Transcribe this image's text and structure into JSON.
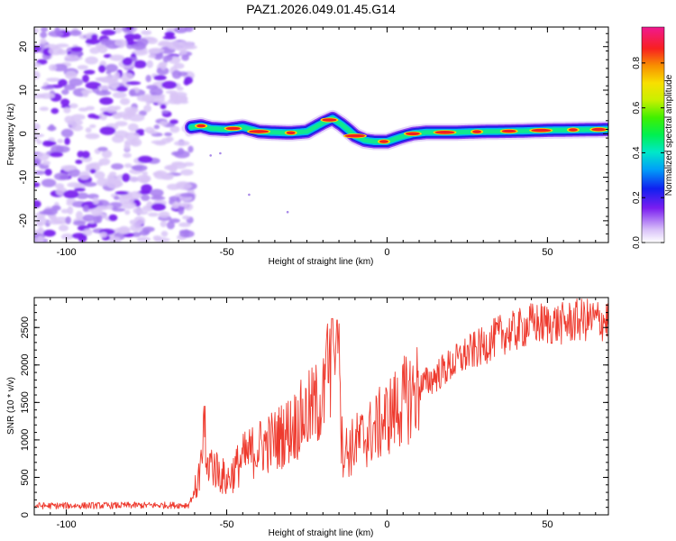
{
  "title": "PAZ1.2026.049.01.45.G14",
  "chart_data": [
    {
      "type": "heatmap",
      "xlabel": "Height of straight line (km)",
      "ylabel": "Frequency (Hz)",
      "xlim": [
        -110,
        69
      ],
      "ylim": [
        -25,
        24.5
      ],
      "xticks": [
        -100,
        -50,
        0,
        50
      ],
      "yticks": [
        -20,
        -10,
        0,
        10,
        20
      ],
      "colorbar": {
        "label": "Normalized spectral amplitude",
        "range": [
          0,
          0.96
        ],
        "ticks": [
          0.0,
          0.2,
          0.4,
          0.6,
          0.8
        ]
      },
      "noise_region_x": [
        -110,
        -61
      ],
      "ridge": {
        "x": [
          -61,
          -58,
          -55,
          -50,
          -45,
          -40,
          -35,
          -30,
          -25,
          -20,
          -17,
          -14,
          -12,
          -10,
          -7,
          -4,
          0,
          4,
          8,
          12,
          20,
          30,
          40,
          50,
          60,
          69
        ],
        "y": [
          1.5,
          1.8,
          1.2,
          1.0,
          1.5,
          0.5,
          0.3,
          0.2,
          0.5,
          2.5,
          3.5,
          2.0,
          0.8,
          -0.5,
          -1.5,
          -1.8,
          -1.8,
          -0.8,
          0.0,
          0.3,
          0.3,
          0.5,
          0.6,
          0.8,
          0.9,
          1.0
        ]
      }
    },
    {
      "type": "line",
      "xlabel": "Height of straight line (km)",
      "ylabel": "SNR (10 * v/v)",
      "xlim": [
        -110,
        69
      ],
      "ylim": [
        0,
        2900
      ],
      "xticks": [
        -100,
        -50,
        0,
        50
      ],
      "yticks": [
        0,
        500,
        1000,
        1500,
        2000,
        2500
      ],
      "color": "#ee3a2e",
      "envelope": {
        "x": [
          -110,
          -62,
          -60,
          -57,
          -55,
          -50,
          -45,
          -40,
          -35,
          -30,
          -25,
          -20,
          -17,
          -16,
          -15,
          -14,
          -12,
          -10,
          -5,
          0,
          5,
          10,
          15,
          20,
          25,
          30,
          35,
          40,
          45,
          50,
          55,
          60,
          65,
          69
        ],
        "y": [
          120,
          130,
          300,
          800,
          700,
          450,
          750,
          900,
          1000,
          1150,
          1350,
          1550,
          1800,
          2050,
          1750,
          900,
          850,
          950,
          1100,
          1300,
          1500,
          1700,
          1850,
          2000,
          2150,
          2250,
          2400,
          2450,
          2550,
          2550,
          2550,
          2600,
          2600,
          2600
        ]
      },
      "peaks": [
        {
          "x": -57,
          "y": 1450
        },
        {
          "x": -17,
          "y": 2620
        },
        {
          "x": -15.5,
          "y": 2600
        }
      ]
    }
  ]
}
